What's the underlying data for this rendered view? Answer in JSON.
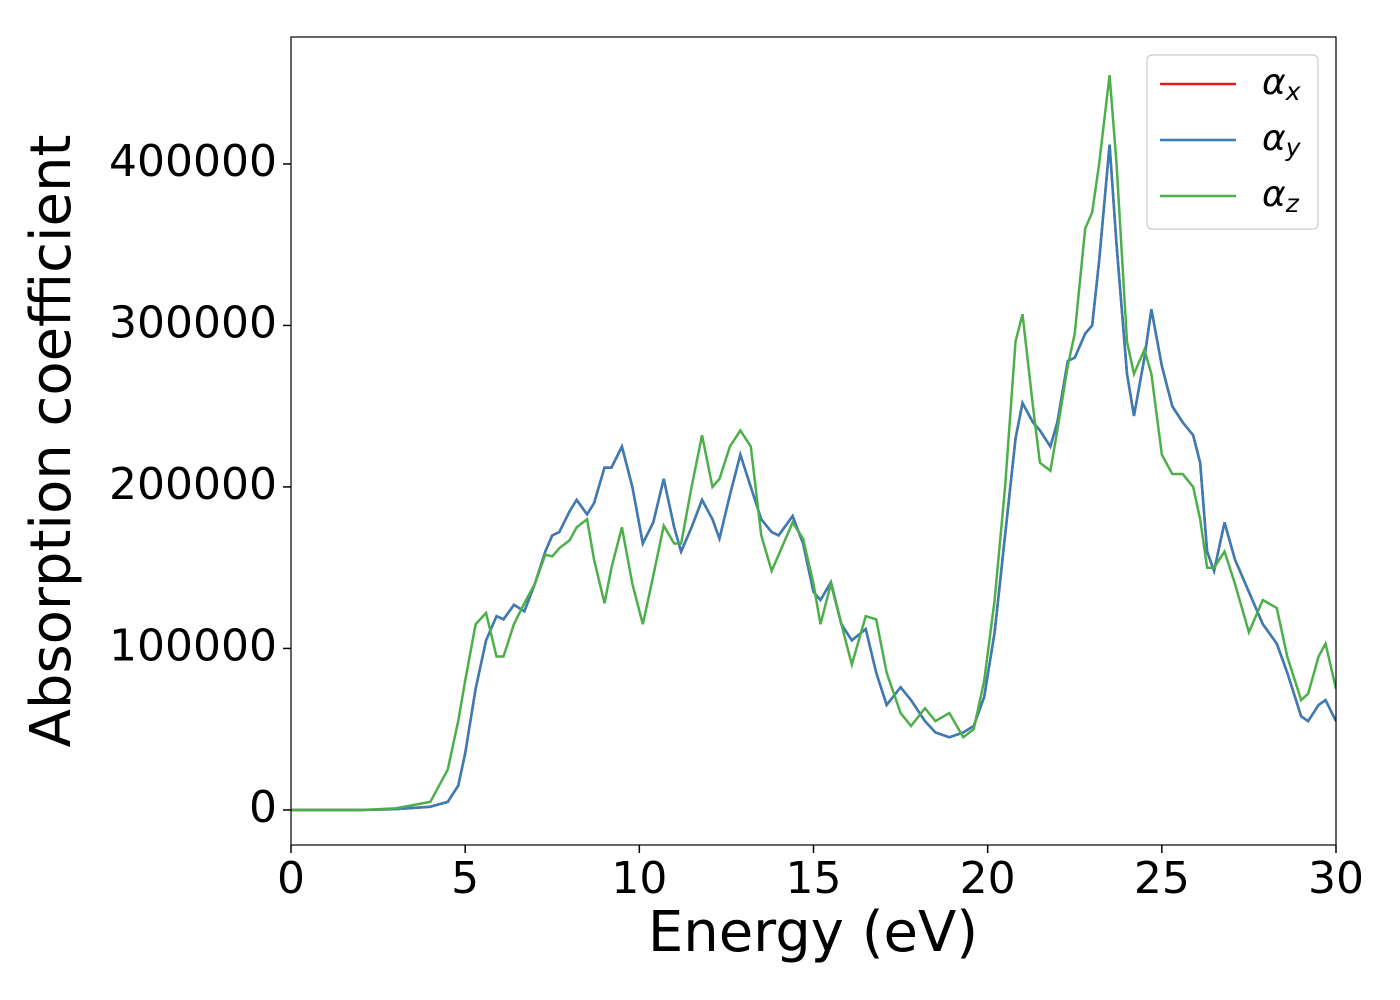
{
  "chart_data": {
    "type": "line",
    "xlabel": "Energy (eV)",
    "ylabel": "Absorption coefficient",
    "x": [
      0,
      1,
      2,
      3,
      4,
      4.5,
      4.8,
      5.0,
      5.3,
      5.6,
      5.9,
      6.1,
      6.4,
      6.7,
      7.0,
      7.3,
      7.5,
      7.7,
      8.0,
      8.2,
      8.5,
      8.7,
      9.0,
      9.2,
      9.5,
      9.8,
      10.1,
      10.4,
      10.7,
      11.0,
      11.2,
      11.5,
      11.8,
      12.1,
      12.3,
      12.6,
      12.9,
      13.2,
      13.5,
      13.8,
      14.0,
      14.4,
      14.7,
      15.0,
      15.2,
      15.5,
      15.8,
      16.1,
      16.5,
      16.8,
      17.1,
      17.5,
      17.8,
      18.2,
      18.5,
      18.9,
      19.3,
      19.6,
      19.9,
      20.2,
      20.5,
      20.8,
      21.0,
      21.3,
      21.5,
      21.8,
      22.0,
      22.3,
      22.5,
      22.8,
      23.0,
      23.2,
      23.5,
      23.7,
      24.0,
      24.2,
      24.5,
      24.7,
      25.0,
      25.3,
      25.6,
      25.9,
      26.1,
      26.3,
      26.5,
      26.8,
      27.1,
      27.5,
      27.9,
      28.3,
      28.6,
      29.0,
      29.2,
      29.5,
      29.7,
      30.0
    ],
    "series": [
      {
        "name": "αx",
        "color": "#e41a1c",
        "values": [
          0,
          0,
          0,
          500,
          2000,
          5000,
          15000,
          35000,
          75000,
          105000,
          120000,
          118000,
          127000,
          123000,
          140000,
          160000,
          170000,
          172000,
          185000,
          192000,
          183000,
          190000,
          212000,
          212000,
          225000,
          200000,
          165000,
          178000,
          205000,
          175000,
          160000,
          175000,
          192000,
          180000,
          168000,
          195000,
          220000,
          200000,
          180000,
          172000,
          170000,
          182000,
          165000,
          135000,
          130000,
          141000,
          115000,
          105000,
          112000,
          85000,
          65000,
          76000,
          68000,
          55000,
          48000,
          45000,
          48000,
          52000,
          70000,
          110000,
          170000,
          230000,
          252000,
          240000,
          235000,
          225000,
          240000,
          278000,
          280000,
          295000,
          300000,
          340000,
          412000,
          350000,
          270000,
          244000,
          280000,
          310000,
          275000,
          250000,
          240000,
          232000,
          215000,
          160000,
          148000,
          178000,
          155000,
          135000,
          115000,
          103000,
          85000,
          58000,
          55000,
          65000,
          68000,
          55000
        ]
      },
      {
        "name": "αy",
        "color": "#377eb8",
        "values": [
          0,
          0,
          0,
          500,
          2000,
          5000,
          15000,
          35000,
          75000,
          105000,
          120000,
          118000,
          127000,
          123000,
          140000,
          160000,
          170000,
          172000,
          185000,
          192000,
          183000,
          190000,
          212000,
          212000,
          225000,
          200000,
          165000,
          178000,
          205000,
          175000,
          160000,
          175000,
          192000,
          180000,
          168000,
          195000,
          220000,
          200000,
          180000,
          172000,
          170000,
          182000,
          165000,
          135000,
          130000,
          141000,
          115000,
          105000,
          112000,
          85000,
          65000,
          76000,
          68000,
          55000,
          48000,
          45000,
          48000,
          52000,
          70000,
          110000,
          170000,
          230000,
          252000,
          240000,
          235000,
          225000,
          240000,
          278000,
          280000,
          295000,
          300000,
          340000,
          412000,
          350000,
          270000,
          244000,
          280000,
          310000,
          275000,
          250000,
          240000,
          232000,
          215000,
          160000,
          148000,
          178000,
          155000,
          135000,
          115000,
          103000,
          85000,
          58000,
          55000,
          65000,
          68000,
          55000
        ]
      },
      {
        "name": "αz",
        "color": "#4daf4a",
        "values": [
          0,
          0,
          0,
          1000,
          5000,
          25000,
          55000,
          80000,
          115000,
          122000,
          95000,
          95000,
          115000,
          128000,
          140000,
          158000,
          157000,
          162000,
          167000,
          175000,
          180000,
          155000,
          128000,
          150000,
          175000,
          140000,
          115000,
          145000,
          176000,
          165000,
          165000,
          200000,
          232000,
          200000,
          205000,
          225000,
          235000,
          225000,
          170000,
          148000,
          158000,
          178000,
          168000,
          140000,
          115000,
          140000,
          115000,
          90000,
          120000,
          118000,
          85000,
          60000,
          52000,
          63000,
          55000,
          60000,
          45000,
          50000,
          80000,
          130000,
          200000,
          290000,
          307000,
          250000,
          215000,
          210000,
          235000,
          275000,
          295000,
          360000,
          370000,
          400000,
          455000,
          400000,
          290000,
          270000,
          285000,
          270000,
          220000,
          208000,
          208000,
          200000,
          180000,
          150000,
          150000,
          160000,
          140000,
          110000,
          130000,
          125000,
          95000,
          68000,
          72000,
          95000,
          103000,
          75000
        ]
      }
    ],
    "xlim": [
      0,
      30
    ],
    "xticks": [
      0,
      5,
      10,
      15,
      20,
      25,
      30
    ],
    "ylim": [
      -21700,
      478600
    ],
    "yticks": [
      0,
      100000,
      200000,
      300000,
      400000
    ],
    "grid": false,
    "legend": "upper right"
  }
}
